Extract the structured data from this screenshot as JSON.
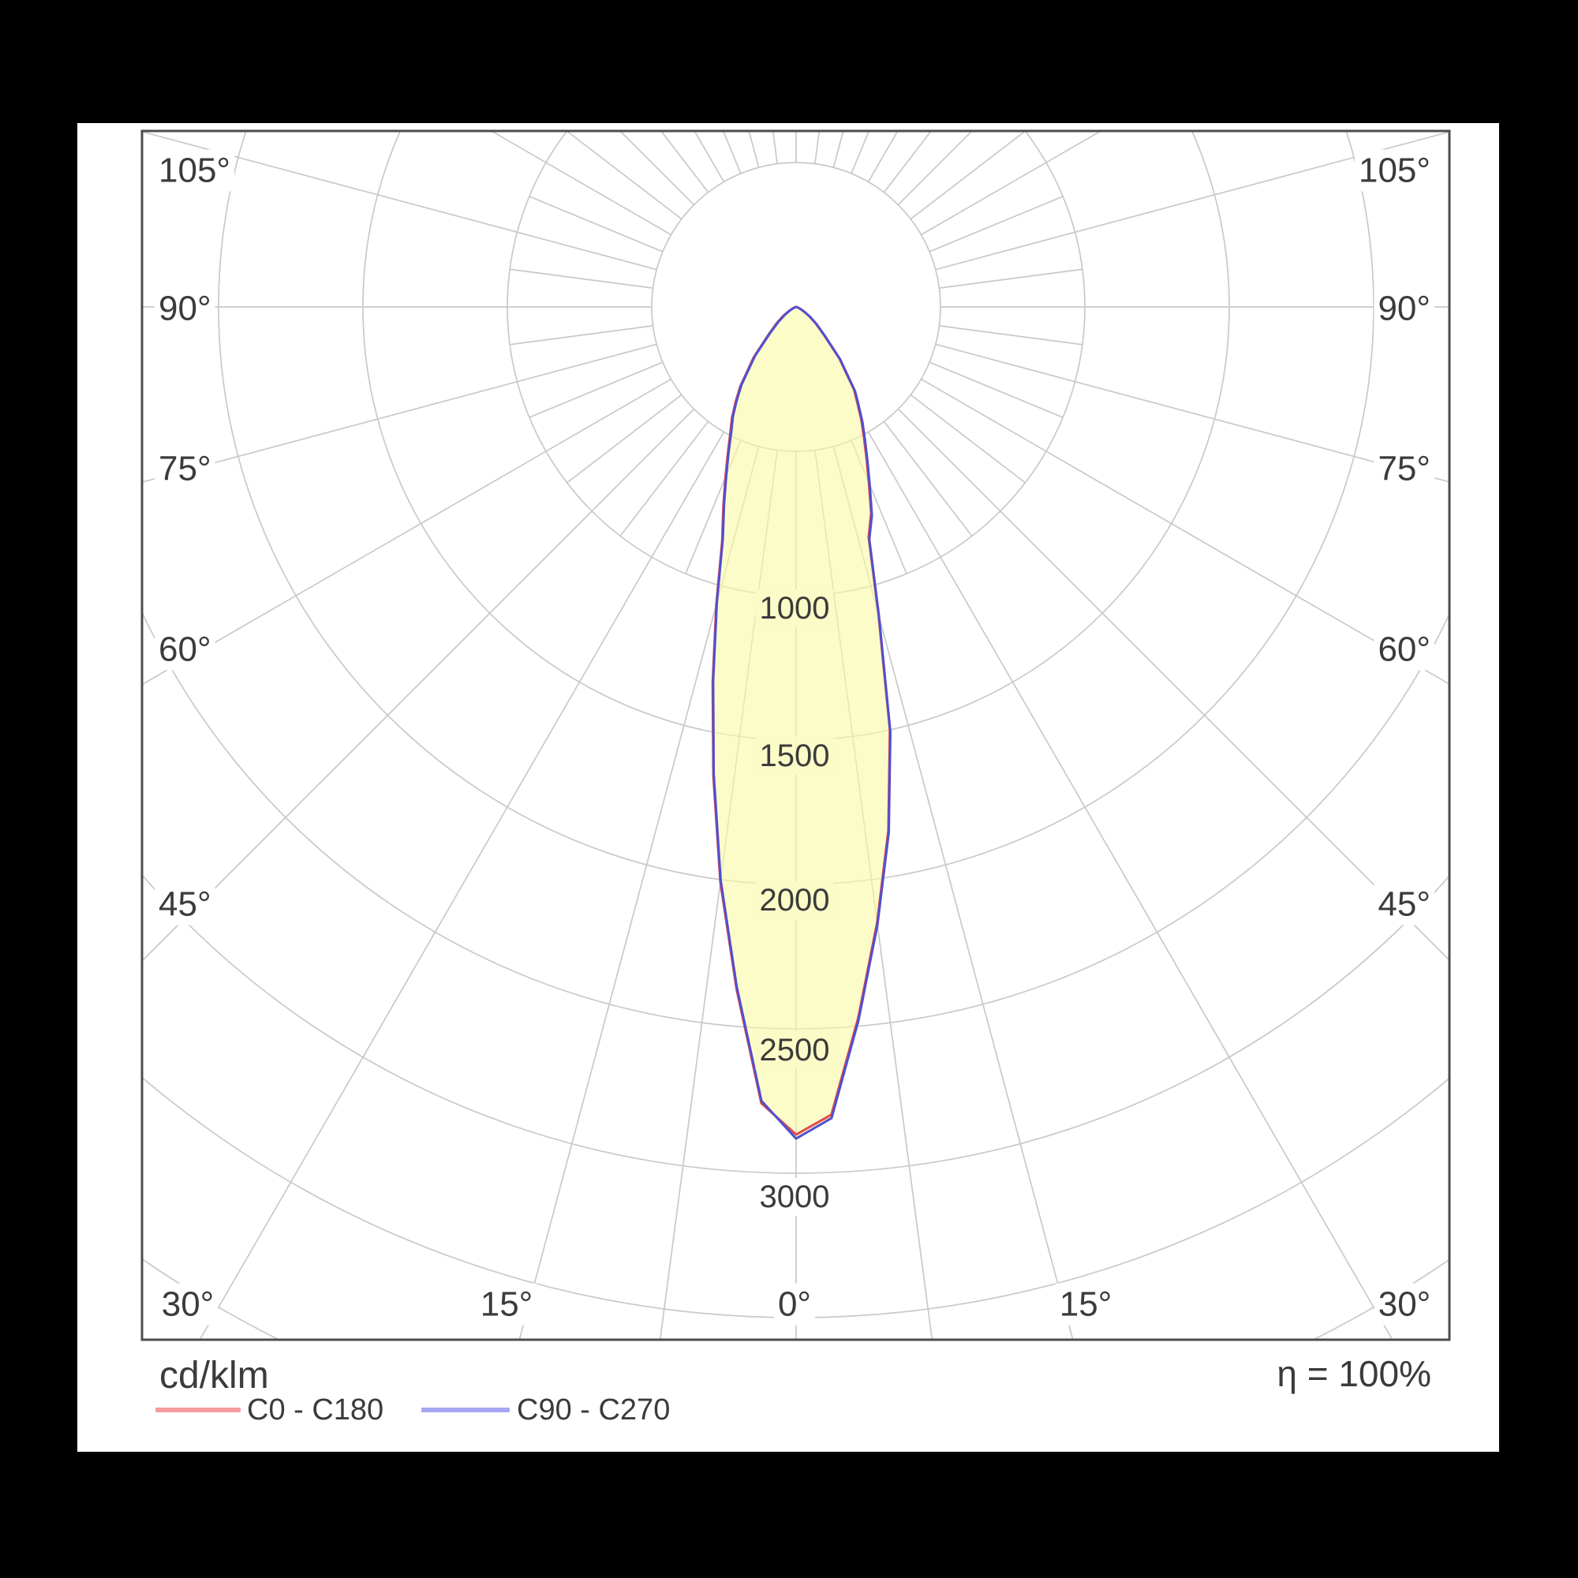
{
  "page": {
    "background": "#000000",
    "panel_background": "#ffffff"
  },
  "footer": {
    "unit_label": "cd/klm",
    "efficiency_label": "η = 100%"
  },
  "polar_grid": {
    "grid_color": "#c9c9c9",
    "frame_color": "#4d4d4d",
    "label_color": "#3b3b3b",
    "left_labels": [
      "105°",
      "90°",
      "75°",
      "60°",
      "45°"
    ],
    "right_labels": [
      "105°",
      "90°",
      "75°",
      "60°",
      "45°"
    ],
    "bottom_labels": [
      "30°",
      "15°",
      "0°",
      "15°",
      "30°"
    ],
    "radial_labels": [
      "1000",
      "1500",
      "2000",
      "2500",
      "3000"
    ],
    "inner_ring": 500,
    "ring_step": 500,
    "rings": [
      500,
      1000,
      1500,
      2000,
      2500,
      3000,
      3500,
      4000
    ],
    "major_spoke_step_deg": 15,
    "minor_spoke_step_deg": 7.5
  },
  "chart_data": {
    "type": "polar_photometric",
    "unit": "cd/klm",
    "efficiency_percent": 100,
    "peak_intensity_cd_per_klm": 2880,
    "fill_color_rgba": "rgba(250,250,168,0.62)",
    "fill_color_flat": "#fbfbc8",
    "gamma_deg": [
      0,
      2.5,
      5,
      7.5,
      10,
      12.5,
      15,
      17.5,
      20,
      22.5,
      25,
      27.5,
      30,
      32.5,
      35,
      40,
      45,
      50,
      55,
      60,
      65,
      70,
      75,
      80,
      85,
      90
    ],
    "series": [
      {
        "name": "C0 - C180",
        "curve_color": "#e04848",
        "legend_color": "#f59c9c",
        "right": [
          2866,
          2800,
          2470,
          2150,
          1840,
          1500,
          1102,
          835,
          760,
          658,
          576,
          508,
          452,
          395,
          349,
          232,
          135,
          88,
          55,
          30,
          15,
          7,
          3,
          1,
          0,
          0
        ],
        "left": [
          2866,
          2760,
          2370,
          2010,
          1650,
          1335,
          1068,
          852,
          737,
          640,
          560,
          494,
          445,
          390,
          338,
          230,
          134,
          88,
          56,
          31,
          15,
          7,
          3,
          1,
          0,
          0
        ]
      },
      {
        "name": "C90 - C270",
        "curve_color": "#4f4fd2",
        "legend_color": "#a6a6f2",
        "right": [
          2880,
          2812,
          2480,
          2158,
          1848,
          1508,
          1110,
          843,
          768,
          666,
          584,
          516,
          459,
          402,
          356,
          238,
          140,
          92,
          58,
          32,
          16,
          8,
          3,
          1,
          0,
          0
        ],
        "left": [
          2880,
          2752,
          2362,
          2002,
          1642,
          1327,
          1060,
          844,
          729,
          632,
          552,
          486,
          437,
          382,
          330,
          222,
          126,
          80,
          48,
          26,
          12,
          5,
          2,
          0,
          0,
          0
        ]
      }
    ]
  }
}
